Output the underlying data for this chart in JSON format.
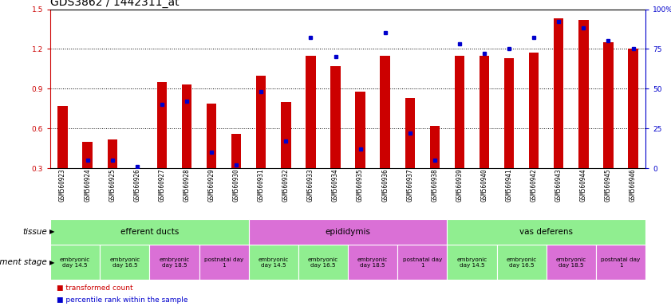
{
  "title": "GDS3862 / 1442311_at",
  "samples": [
    "GSM560923",
    "GSM560924",
    "GSM560925",
    "GSM560926",
    "GSM560927",
    "GSM560928",
    "GSM560929",
    "GSM560930",
    "GSM560931",
    "GSM560932",
    "GSM560933",
    "GSM560934",
    "GSM560935",
    "GSM560936",
    "GSM560937",
    "GSM560938",
    "GSM560939",
    "GSM560940",
    "GSM560941",
    "GSM560942",
    "GSM560943",
    "GSM560944",
    "GSM560945",
    "GSM560946"
  ],
  "red_values": [
    0.77,
    0.5,
    0.52,
    0.3,
    0.95,
    0.93,
    0.79,
    0.56,
    1.0,
    0.8,
    1.15,
    1.07,
    0.88,
    1.15,
    0.83,
    0.62,
    1.15,
    1.15,
    1.13,
    1.17,
    1.43,
    1.42,
    1.25,
    1.2
  ],
  "blue_values": [
    null,
    5,
    5,
    1,
    40,
    42,
    10,
    2,
    48,
    17,
    82,
    70,
    12,
    85,
    22,
    5,
    78,
    72,
    75,
    82,
    92,
    88,
    80,
    75
  ],
  "ylim_left": [
    0.3,
    1.5
  ],
  "ylim_right": [
    0,
    100
  ],
  "yticks_left": [
    0.3,
    0.6,
    0.9,
    1.2,
    1.5
  ],
  "yticks_right": [
    0,
    25,
    50,
    75,
    100
  ],
  "ytick_labels_right": [
    "0",
    "25",
    "50",
    "75",
    "100%"
  ],
  "tissue_groups": [
    {
      "label": "efferent ducts",
      "start": 0,
      "end": 7,
      "color": "#90ee90"
    },
    {
      "label": "epididymis",
      "start": 8,
      "end": 15,
      "color": "#da70d6"
    },
    {
      "label": "vas deferens",
      "start": 16,
      "end": 23,
      "color": "#90ee90"
    }
  ],
  "dev_stage_groups": [
    {
      "label": "embryonic\nday 14.5",
      "start": 0,
      "end": 1,
      "color": "#90ee90"
    },
    {
      "label": "embryonic\nday 16.5",
      "start": 2,
      "end": 3,
      "color": "#90ee90"
    },
    {
      "label": "embryonic\nday 18.5",
      "start": 4,
      "end": 5,
      "color": "#da70d6"
    },
    {
      "label": "postnatal day\n1",
      "start": 6,
      "end": 7,
      "color": "#da70d6"
    },
    {
      "label": "embryonic\nday 14.5",
      "start": 8,
      "end": 9,
      "color": "#90ee90"
    },
    {
      "label": "embryonic\nday 16.5",
      "start": 10,
      "end": 11,
      "color": "#90ee90"
    },
    {
      "label": "embryonic\nday 18.5",
      "start": 12,
      "end": 13,
      "color": "#da70d6"
    },
    {
      "label": "postnatal day\n1",
      "start": 14,
      "end": 15,
      "color": "#da70d6"
    },
    {
      "label": "embryonic\nday 14.5",
      "start": 16,
      "end": 17,
      "color": "#90ee90"
    },
    {
      "label": "embryonic\nday 16.5",
      "start": 18,
      "end": 19,
      "color": "#90ee90"
    },
    {
      "label": "embryonic\nday 18.5",
      "start": 20,
      "end": 21,
      "color": "#da70d6"
    },
    {
      "label": "postnatal day\n1",
      "start": 22,
      "end": 23,
      "color": "#da70d6"
    }
  ],
  "bar_color": "#cc0000",
  "dot_color": "#0000cc",
  "background_color": "#ffffff",
  "grid_color": "#000000",
  "title_fontsize": 10,
  "tick_fontsize": 6.5,
  "label_fontsize": 7.5
}
